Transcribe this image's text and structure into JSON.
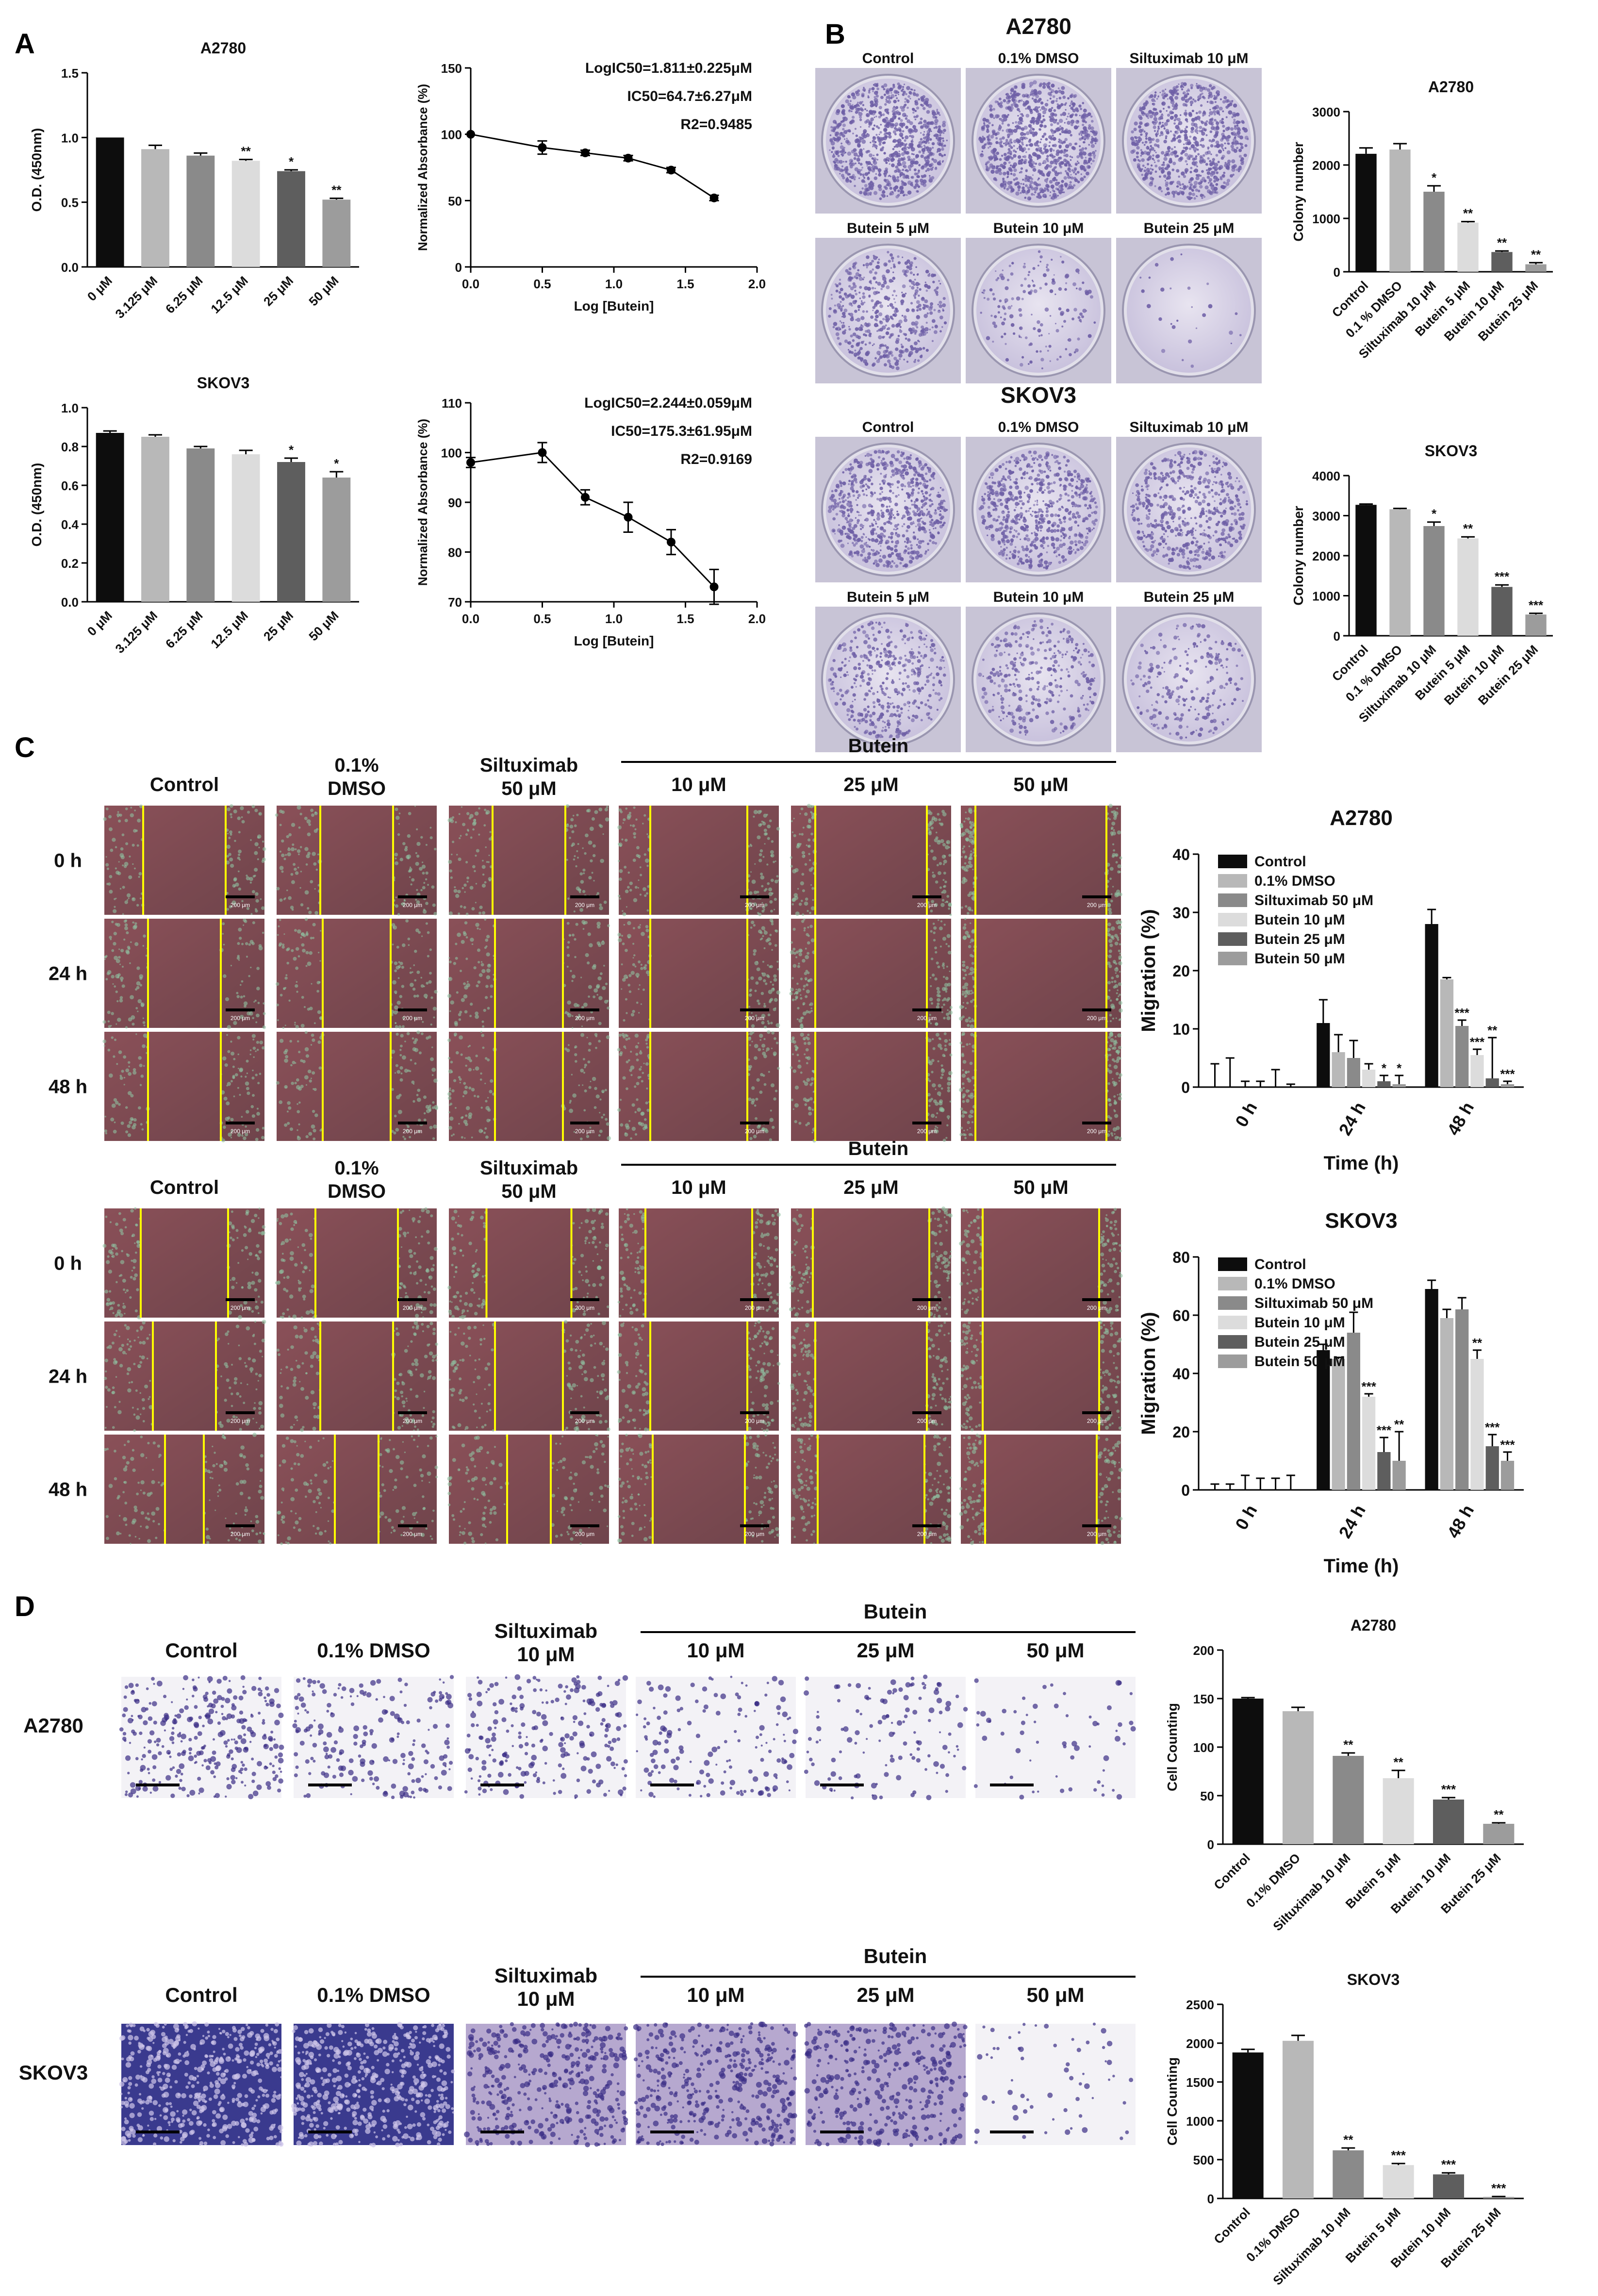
{
  "panel_letters": [
    "A",
    "B",
    "C",
    "D"
  ],
  "colors": {
    "black": "#0d0d0d",
    "dark": "#5e5e5e",
    "mid": "#8a8a8a",
    "mid2": "#9c9c9c",
    "light": "#dcdcdc",
    "light2": "#b8b8b8",
    "plate_bg": "#d8d4e6",
    "plate_stain": "#6e5fa6",
    "scratch_bg": "#7d4a52",
    "scratch_edge": "#ffff00",
    "transwell_bg": "#f3f2f6",
    "transwell_cell": "#3a2e86",
    "transwell_dense": "#28238a"
  },
  "panel_a": {
    "od_charts": [
      {
        "title": "A2780",
        "ylabel": "O.D. (450nm)",
        "categories": [
          "0 μM",
          "3.125 μM",
          "6.25 μM",
          "12.5 μM",
          "25 μM",
          "50 μM"
        ],
        "values": [
          1.0,
          0.91,
          0.86,
          0.82,
          0.74,
          0.52
        ],
        "errors": [
          0.0,
          0.03,
          0.02,
          0.01,
          0.01,
          0.01
        ],
        "sig": [
          "",
          "",
          "",
          "**",
          "*",
          "**"
        ],
        "yticks": [
          "0.0",
          "0.5",
          "1.0",
          "1.5"
        ],
        "ylim": [
          0,
          1.5
        ]
      },
      {
        "title": "SKOV3",
        "ylabel": "O.D. (450nm)",
        "categories": [
          "0 μM",
          "3.125 μM",
          "6.25 μM",
          "12.5 μM",
          "25 μM",
          "50 μM"
        ],
        "values": [
          0.87,
          0.85,
          0.79,
          0.76,
          0.72,
          0.64
        ],
        "errors": [
          0.01,
          0.01,
          0.01,
          0.02,
          0.02,
          0.03
        ],
        "sig": [
          "",
          "",
          "",
          "",
          "*",
          "*"
        ],
        "yticks": [
          "0.0",
          "0.2",
          "0.4",
          "0.6",
          "0.8",
          "1.0"
        ],
        "ylim": [
          0,
          1.0
        ]
      }
    ],
    "curve_charts": [
      {
        "ylabel": "Normalized Absorbance (%)",
        "xlabel": "Log [Butein]",
        "xticks": [
          "0.0",
          "0.5",
          "1.0",
          "1.5",
          "2.0"
        ],
        "yticks": [
          "0",
          "50",
          "100",
          "150"
        ],
        "ylim": [
          0,
          150
        ],
        "stats": [
          "LogIC50=1.811±0.225μM",
          "IC50=64.7±6.27μM",
          "R2=0.9485"
        ],
        "x": [
          0.0,
          0.5,
          0.8,
          1.1,
          1.4,
          1.7
        ],
        "y": [
          100,
          90,
          86,
          82,
          73,
          52
        ],
        "err": [
          0,
          5,
          2,
          2,
          2,
          2
        ]
      },
      {
        "ylabel": "Normalized Absorbance (%)",
        "xlabel": "Log [Butein]",
        "xticks": [
          "0.0",
          "0.5",
          "1.0",
          "1.5",
          "2.0"
        ],
        "yticks": [
          "70",
          "80",
          "90",
          "100",
          "110"
        ],
        "ylim": [
          70,
          110
        ],
        "stats": [
          "LogIC50=2.244±0.059μM",
          "IC50=175.3±61.95μM",
          "R2=0.9169"
        ],
        "x": [
          0.0,
          0.5,
          0.8,
          1.1,
          1.4,
          1.7
        ],
        "y": [
          98,
          100,
          91,
          87,
          82,
          73
        ],
        "err": [
          1,
          2,
          1.5,
          3,
          2.5,
          3.5
        ]
      }
    ]
  },
  "panel_b": {
    "lines": [
      {
        "title": "A2780",
        "labels_row1": [
          "Control",
          "0.1% DMSO",
          "Siltuximab 10 μM"
        ],
        "labels_row2": [
          "Butein 5 μM",
          "Butein 10 μM",
          "Butein 25 μM"
        ],
        "density": [
          1.0,
          1.0,
          0.9,
          0.55,
          0.18,
          0.03
        ]
      },
      {
        "title": "SKOV3",
        "labels_row1": [
          "Control",
          "0.1% DMSO",
          "Siltuximab 10 μM"
        ],
        "labels_row2": [
          "Butein 5 μM",
          "Butein 10 μM",
          "Butein 25 μM"
        ],
        "density": [
          0.75,
          0.7,
          0.6,
          0.45,
          0.35,
          0.25
        ]
      }
    ],
    "colony_charts": [
      {
        "title": "A2780",
        "ylabel": "Colony number",
        "categories": [
          "Control",
          "0.1 % DMSO",
          "Siltuximab 10 μM",
          "Butein 5 μM",
          "Butein 10 μM",
          "Butein 25 μM"
        ],
        "values": [
          2210,
          2290,
          1500,
          920,
          370,
          140
        ],
        "errors": [
          110,
          110,
          110,
          20,
          20,
          30
        ],
        "sig": [
          "",
          "",
          "*",
          "**",
          "**",
          "**"
        ],
        "yticks": [
          "0",
          "1000",
          "2000",
          "3000"
        ],
        "ylim": [
          0,
          3000
        ]
      },
      {
        "title": "SKOV3",
        "ylabel": "Colony number",
        "categories": [
          "Control",
          "0.1 % DMSO",
          "Siltuximab 10 μM",
          "Butein 5 μM",
          "Butein 10 μM",
          "Butein 25 μM"
        ],
        "values": [
          3270,
          3160,
          2740,
          2430,
          1220,
          530
        ],
        "errors": [
          20,
          20,
          100,
          40,
          50,
          30
        ],
        "sig": [
          "",
          "",
          "*",
          "**",
          "***",
          "***"
        ],
        "yticks": [
          "0",
          "1000",
          "2000",
          "3000",
          "4000"
        ],
        "ylim": [
          0,
          4000
        ]
      }
    ]
  },
  "panel_c": {
    "col_headers": [
      [
        "Control"
      ],
      [
        "0.1%",
        "DMSO"
      ],
      [
        "Siltuximab",
        "50 μM"
      ],
      [
        "10 μM"
      ],
      [
        "25 μM"
      ],
      [
        "50 μM"
      ]
    ],
    "butein_label": "Butein",
    "row_labels": [
      "0 h",
      "24 h",
      "48 h"
    ],
    "scale_label": "200 μm",
    "migration_charts": [
      {
        "title": "A2780",
        "ylabel": "Migration (%)",
        "xlabel": "Time (h)",
        "groups": [
          "0 h",
          "24 h",
          "48 h"
        ],
        "yticks": [
          "0",
          "10",
          "20",
          "30",
          "40"
        ],
        "ylim": [
          0,
          40
        ],
        "legend": [
          "Control",
          "0.1% DMSO",
          "Siltuximab 50 μM",
          "Butein 10 μM",
          "Butein 25 μM",
          "Butein 50 μM"
        ],
        "values": [
          [
            0,
            0,
            0,
            0,
            0,
            0
          ],
          [
            11,
            6,
            5,
            3,
            1,
            0.5
          ],
          [
            28,
            18.5,
            10.5,
            5.5,
            1.5,
            0.5
          ]
        ],
        "errors": [
          [
            4,
            5,
            1,
            1,
            3,
            0.5
          ],
          [
            4,
            3,
            3,
            1,
            1,
            1.5
          ],
          [
            2.5,
            0.3,
            1,
            1,
            7,
            0.5
          ]
        ],
        "sig": [
          [
            "",
            "",
            "",
            "",
            "",
            ""
          ],
          [
            "",
            "",
            "",
            "",
            "*",
            "*"
          ],
          [
            "",
            "",
            "***",
            "***",
            "**",
            "***"
          ]
        ]
      },
      {
        "title": "SKOV3",
        "ylabel": "Migration (%)",
        "xlabel": "Time (h)",
        "groups": [
          "0 h",
          "24 h",
          "48 h"
        ],
        "yticks": [
          "0",
          "20",
          "40",
          "60",
          "80"
        ],
        "ylim": [
          0,
          80
        ],
        "legend": [
          "Control",
          "0.1% DMSO",
          "Siltuximab 50 μM",
          "Butein 10 μM",
          "Butein 25 μM",
          "Butein 50 μM"
        ],
        "values": [
          [
            0,
            0,
            0,
            0,
            0,
            0
          ],
          [
            48,
            45,
            54,
            32,
            13,
            10
          ],
          [
            69,
            59,
            62,
            45,
            15,
            10
          ]
        ],
        "errors": [
          [
            2,
            2,
            5,
            4,
            4,
            5
          ],
          [
            2,
            0.5,
            7,
            1,
            5,
            10
          ],
          [
            3,
            3,
            4,
            3,
            4,
            3
          ]
        ],
        "sig": [
          [
            "",
            "",
            "",
            "",
            "",
            ""
          ],
          [
            "",
            "",
            "",
            "***",
            "***",
            "**"
          ],
          [
            "",
            "",
            "",
            "**",
            "***",
            "***"
          ]
        ]
      }
    ]
  },
  "panel_d": {
    "col_headers": [
      [
        "Control"
      ],
      [
        "0.1% DMSO"
      ],
      [
        "Siltuximab",
        "10 μM"
      ],
      [
        "10 μM"
      ],
      [
        "25 μM"
      ],
      [
        "50 μM"
      ]
    ],
    "butein_label": "Butein",
    "row_labels": [
      "A2780",
      "SKOV3"
    ],
    "density": [
      [
        0.6,
        0.4,
        0.45,
        0.3,
        0.25,
        0.12
      ],
      [
        1.0,
        1.0,
        0.8,
        0.8,
        0.7,
        0.12
      ]
    ],
    "count_charts": [
      {
        "title": "A2780",
        "ylabel": "Cell Counting",
        "categories": [
          "Control",
          "0.1% DMSO",
          "Siltuximab 10 μM",
          "Butein 5 μM",
          "Butein 10 μM",
          "Butein 25 μM"
        ],
        "values": [
          150,
          137,
          91,
          68,
          46,
          21
        ],
        "errors": [
          1,
          4,
          3,
          8,
          2,
          1
        ],
        "sig": [
          "",
          "",
          "**",
          "**",
          "***",
          "**"
        ],
        "yticks": [
          "0",
          "50",
          "100",
          "150",
          "200"
        ],
        "ylim": [
          0,
          200
        ]
      },
      {
        "title": "SKOV3",
        "ylabel": "Cell Counting",
        "categories": [
          "Control",
          "0.1% DMSO",
          "Siltuximab 10 μM",
          "Butein 5 μM",
          "Butein 10 μM",
          "Butein 25 μM"
        ],
        "values": [
          1880,
          2030,
          620,
          430,
          310,
          20
        ],
        "errors": [
          40,
          70,
          30,
          20,
          20,
          5
        ],
        "sig": [
          "",
          "",
          "**",
          "***",
          "***",
          "***"
        ],
        "yticks": [
          "0",
          "500",
          "1000",
          "1500",
          "2000",
          "2500"
        ],
        "ylim": [
          0,
          2500
        ]
      }
    ]
  }
}
